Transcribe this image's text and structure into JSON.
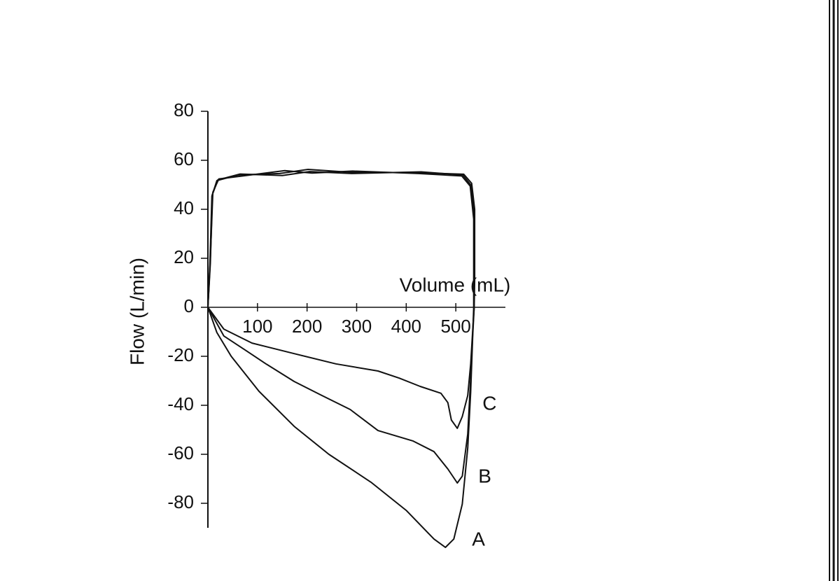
{
  "chart_data": {
    "type": "line",
    "x_label": "Volume (mL)",
    "y_label": "Flow (L/min)",
    "xlim": [
      0,
      600
    ],
    "ylim": [
      -90,
      80
    ],
    "xticks": [
      100,
      200,
      300,
      400,
      500
    ],
    "yticks": [
      -80,
      -60,
      -40,
      -20,
      0,
      20,
      40,
      60,
      80
    ],
    "series": [
      {
        "name": "A",
        "color": "#111111",
        "x": [
          0,
          18,
          47,
          103,
          174,
          244,
          329,
          400,
          456,
          479,
          496,
          513,
          524,
          530,
          534,
          537,
          538,
          538,
          532,
          516,
          428,
          287,
          202,
          145,
          61,
          18,
          8,
          4,
          0
        ],
        "values": [
          0,
          -10.3,
          -20,
          -34.3,
          -48.6,
          -60,
          -71.4,
          -82.9,
          -94.6,
          -98,
          -94.6,
          -80.3,
          -57.4,
          -34.6,
          -11.7,
          0,
          11,
          40,
          50.6,
          54.3,
          54.9,
          55.1,
          56.3,
          54.6,
          54,
          51.7,
          45.4,
          16.9,
          0
        ]
      },
      {
        "name": "B",
        "color": "#111111",
        "x": [
          0,
          32,
          75,
          117,
          174,
          230,
          287,
          343,
          414,
          456,
          484,
          503,
          513,
          524,
          530,
          535,
          537,
          537,
          530,
          514,
          430,
          290,
          205,
          150,
          65,
          20,
          9,
          5,
          0
        ],
        "values": [
          0,
          -11.7,
          -17.4,
          -23.1,
          -30.3,
          -36,
          -41.7,
          -50.3,
          -54.6,
          -58.9,
          -66,
          -71.7,
          -68.9,
          -51.7,
          -28.9,
          -6,
          0,
          38,
          50,
          54,
          55.3,
          54.6,
          55.4,
          53.8,
          54.4,
          52,
          46,
          18,
          0
        ]
      },
      {
        "name": "C",
        "color": "#111111",
        "x": [
          0,
          32,
          89,
          174,
          258,
          343,
          386,
          428,
          470,
          484,
          491,
          503,
          513,
          524,
          530,
          535,
          536,
          536,
          529,
          512,
          425,
          292,
          210,
          155,
          70,
          22,
          10,
          5,
          0
        ],
        "values": [
          0,
          -8.9,
          -14.6,
          -18.9,
          -23.1,
          -26,
          -28.9,
          -32.3,
          -35.1,
          -38.9,
          -46,
          -49.4,
          -44.6,
          -36,
          -23.1,
          -6,
          0,
          36,
          49.5,
          53.6,
          54.6,
          55.6,
          54.8,
          55.8,
          53.6,
          52.4,
          47,
          20,
          0
        ]
      }
    ]
  }
}
